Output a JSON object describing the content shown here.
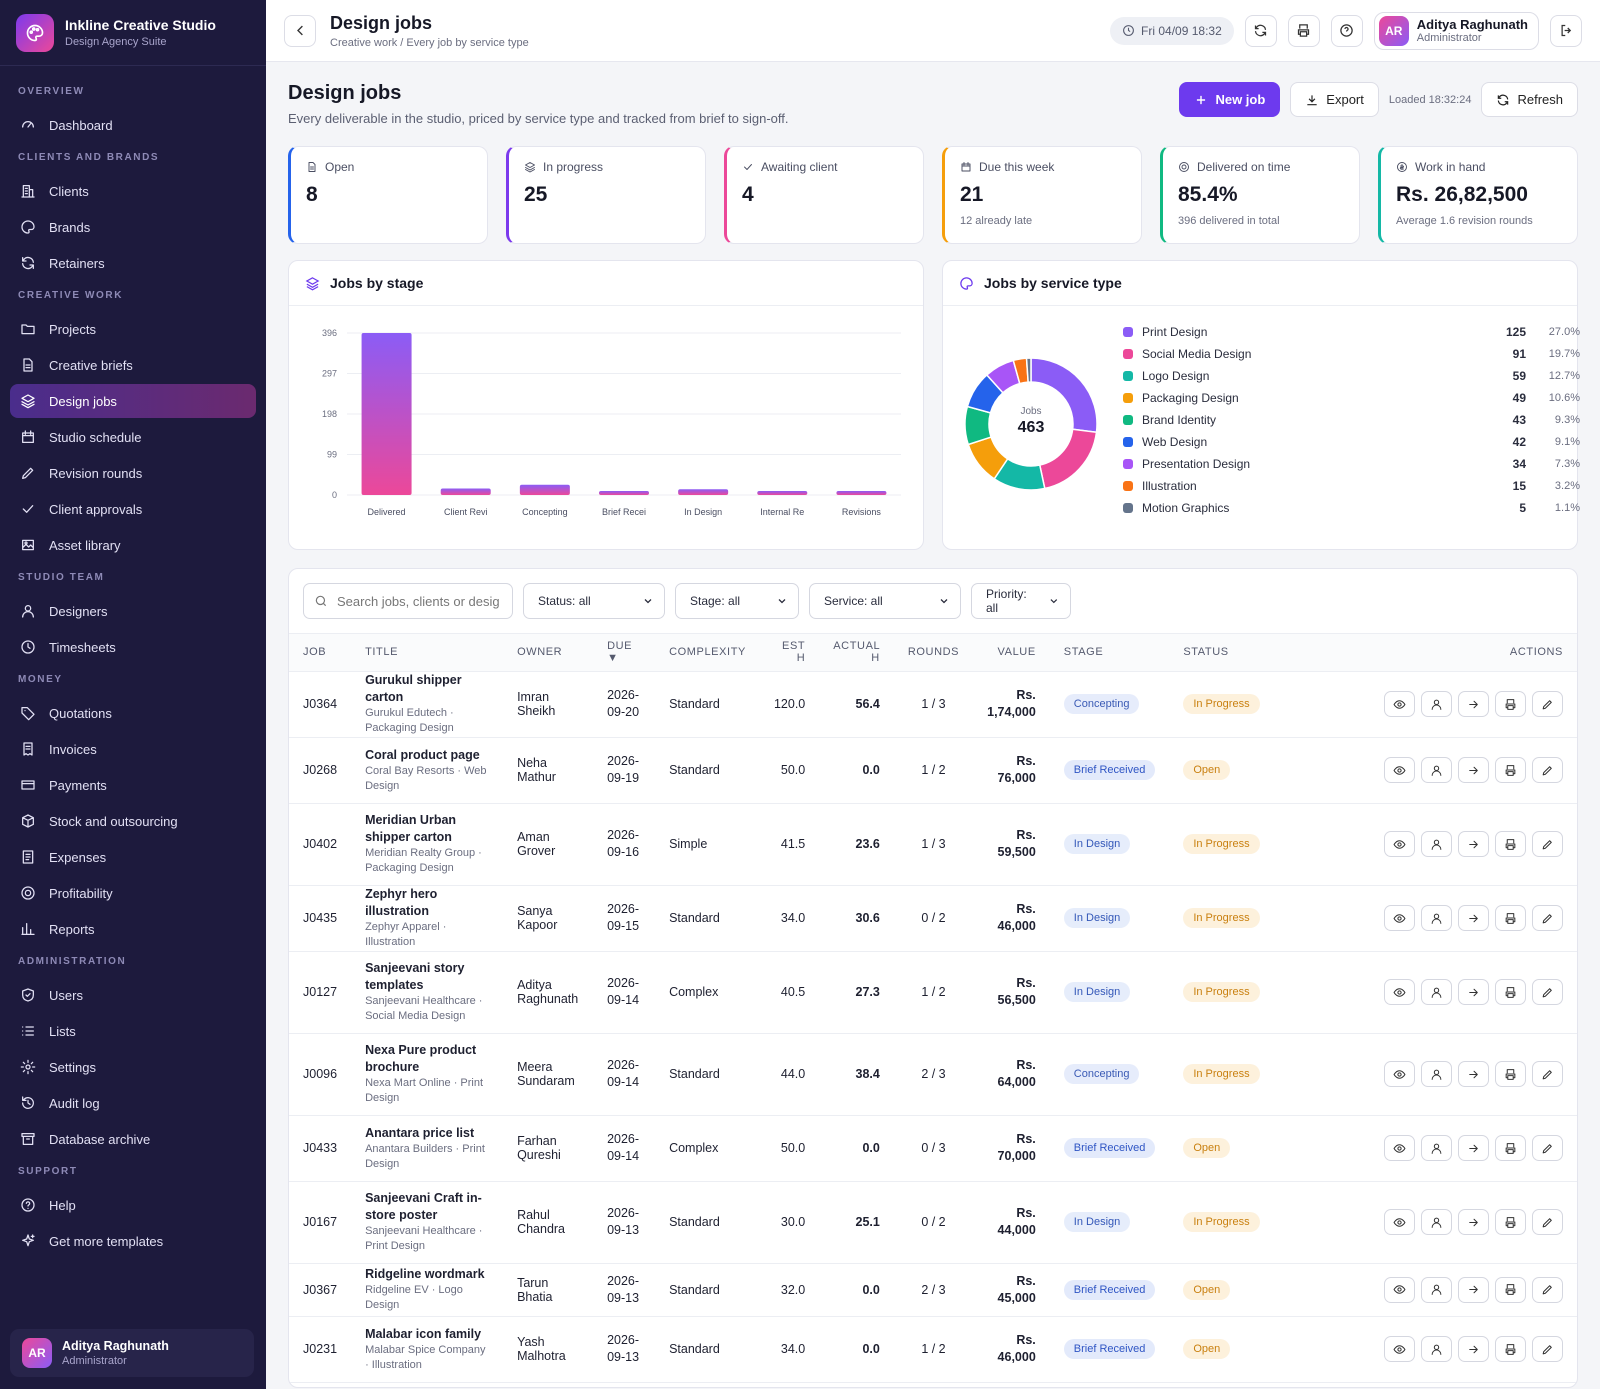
{
  "brand": {
    "name": "Inkline Creative Studio",
    "subtitle": "Design Agency Suite"
  },
  "sidebar": {
    "sections": [
      {
        "title": "OVERVIEW",
        "items": [
          {
            "label": "Dashboard",
            "icon": "dashboard-icon"
          }
        ]
      },
      {
        "title": "CLIENTS AND BRANDS",
        "items": [
          {
            "label": "Clients",
            "icon": "building-icon"
          },
          {
            "label": "Brands",
            "icon": "palette-icon"
          },
          {
            "label": "Retainers",
            "icon": "refresh-icon"
          }
        ]
      },
      {
        "title": "CREATIVE WORK",
        "items": [
          {
            "label": "Projects",
            "icon": "folder-icon"
          },
          {
            "label": "Creative briefs",
            "icon": "file-icon"
          },
          {
            "label": "Design jobs",
            "icon": "layers-icon",
            "active": true
          },
          {
            "label": "Studio schedule",
            "icon": "calendar-icon"
          },
          {
            "label": "Revision rounds",
            "icon": "pen-icon"
          },
          {
            "label": "Client approvals",
            "icon": "check-icon"
          },
          {
            "label": "Asset library",
            "icon": "image-icon"
          }
        ]
      },
      {
        "title": "STUDIO TEAM",
        "items": [
          {
            "label": "Designers",
            "icon": "user-icon"
          },
          {
            "label": "Timesheets",
            "icon": "clock-icon"
          }
        ]
      },
      {
        "title": "MONEY",
        "items": [
          {
            "label": "Quotations",
            "icon": "tag-icon"
          },
          {
            "label": "Invoices",
            "icon": "receipt-icon"
          },
          {
            "label": "Payments",
            "icon": "card-icon"
          },
          {
            "label": "Stock and outsourcing",
            "icon": "box-icon"
          },
          {
            "label": "Expenses",
            "icon": "list-doc-icon"
          },
          {
            "label": "Profitability",
            "icon": "target-icon"
          },
          {
            "label": "Reports",
            "icon": "bar-chart-icon"
          }
        ]
      },
      {
        "title": "ADMINISTRATION",
        "items": [
          {
            "label": "Users",
            "icon": "shield-icon"
          },
          {
            "label": "Lists",
            "icon": "list-icon"
          },
          {
            "label": "Settings",
            "icon": "gear-icon"
          },
          {
            "label": "Audit log",
            "icon": "history-icon"
          },
          {
            "label": "Database archive",
            "icon": "archive-icon"
          }
        ]
      },
      {
        "title": "SUPPORT",
        "items": [
          {
            "label": "Help",
            "icon": "help-icon"
          },
          {
            "label": "Get more templates",
            "icon": "sparkle-icon"
          }
        ]
      }
    ]
  },
  "user": {
    "initials": "AR",
    "name": "Aditya Raghunath",
    "role": "Administrator"
  },
  "topbar": {
    "title": "Design jobs",
    "breadcrumb": "Creative work / Every job by service type",
    "datetime": "Fri 04/09 18:32"
  },
  "page": {
    "title": "Design jobs",
    "subtitle": "Every deliverable in the studio, priced by service type and tracked from brief to sign-off.",
    "new_label": "New job",
    "export_label": "Export",
    "loaded": "Loaded 18:32:24",
    "refresh_label": "Refresh"
  },
  "kpis": [
    {
      "label": "Open",
      "value": "8",
      "sub": "",
      "color": "#2563eb",
      "icon": "file-icon"
    },
    {
      "label": "In progress",
      "value": "25",
      "sub": "",
      "color": "#7c3aed",
      "icon": "layers-icon"
    },
    {
      "label": "Awaiting client",
      "value": "4",
      "sub": "",
      "color": "#ec4899",
      "icon": "check-icon"
    },
    {
      "label": "Due this week",
      "value": "21",
      "sub": "12 already late",
      "color": "#f59e0b",
      "icon": "calendar-icon"
    },
    {
      "label": "Delivered on time",
      "value": "85.4%",
      "sub": "396 delivered in total",
      "color": "#10b981",
      "icon": "target-icon"
    },
    {
      "label": "Work in hand",
      "value": "Rs. 26,82,500",
      "sub": "Average 1.6 revision rounds",
      "color": "#14b8a6",
      "icon": "coin-icon"
    }
  ],
  "stage_panel": {
    "title": "Jobs by stage"
  },
  "service_panel": {
    "title": "Jobs by service type",
    "center_label": "Jobs",
    "center_value": "463"
  },
  "chart_data": [
    {
      "type": "bar",
      "title": "Jobs by stage",
      "categories": [
        "Delivered",
        "Client Revi",
        "Concepting",
        "Brief Recei",
        "In Design",
        "Internal Re",
        "Revisions"
      ],
      "values": [
        396,
        16,
        25,
        8,
        14,
        3,
        1
      ],
      "yticks": [
        0,
        99,
        198,
        297,
        396
      ],
      "ylim": [
        0,
        396
      ],
      "grid": true
    },
    {
      "type": "pie",
      "title": "Jobs by service type",
      "total": 463,
      "slices": [
        {
          "name": "Print Design",
          "value": 125,
          "pct": "27.0%",
          "color": "#8b5cf6"
        },
        {
          "name": "Social Media Design",
          "value": 91,
          "pct": "19.7%",
          "color": "#ec4899"
        },
        {
          "name": "Logo Design",
          "value": 59,
          "pct": "12.7%",
          "color": "#14b8a6"
        },
        {
          "name": "Packaging Design",
          "value": 49,
          "pct": "10.6%",
          "color": "#f59e0b"
        },
        {
          "name": "Brand Identity",
          "value": 43,
          "pct": "9.3%",
          "color": "#10b981"
        },
        {
          "name": "Web Design",
          "value": 42,
          "pct": "9.1%",
          "color": "#2563eb"
        },
        {
          "name": "Presentation Design",
          "value": 34,
          "pct": "7.3%",
          "color": "#a855f7"
        },
        {
          "name": "Illustration",
          "value": 15,
          "pct": "3.2%",
          "color": "#f97316"
        },
        {
          "name": "Motion Graphics",
          "value": 5,
          "pct": "1.1%",
          "color": "#64748b"
        }
      ]
    }
  ],
  "filters": {
    "search_placeholder": "Search jobs, clients or desig",
    "status": "Status: all",
    "stage": "Stage: all",
    "service": "Service: all",
    "priority": "Priority: all"
  },
  "table": {
    "columns": [
      "JOB",
      "TITLE",
      "OWNER",
      "DUE ▼",
      "COMPLEXITY",
      "EST H",
      "ACTUAL H",
      "ROUNDS",
      "VALUE",
      "STAGE",
      "STATUS",
      "ACTIONS"
    ],
    "rows": [
      {
        "job": "J0364",
        "title": "Gurukul shipper carton",
        "sub": "Gurukul Edutech · Packaging Design",
        "owner": "Imran Sheikh",
        "due": "2026-09-20",
        "complexity": "Standard",
        "est": "120.0",
        "actual": "56.4",
        "rounds": "1 / 3",
        "value": "Rs. 1,74,000",
        "stage": "Concepting",
        "status": "In Progress"
      },
      {
        "job": "J0268",
        "title": "Coral product page",
        "sub": "Coral Bay Resorts · Web Design",
        "owner": "Neha Mathur",
        "due": "2026-09-19",
        "complexity": "Standard",
        "est": "50.0",
        "actual": "0.0",
        "rounds": "1 / 2",
        "value": "Rs. 76,000",
        "stage": "Brief Received",
        "status": "Open"
      },
      {
        "job": "J0402",
        "title": "Meridian Urban shipper carton",
        "sub": "Meridian Realty Group · Packaging Design",
        "owner": "Aman Grover",
        "due": "2026-09-16",
        "complexity": "Simple",
        "est": "41.5",
        "actual": "23.6",
        "rounds": "1 / 3",
        "value": "Rs. 59,500",
        "stage": "In Design",
        "status": "In Progress"
      },
      {
        "job": "J0435",
        "title": "Zephyr hero illustration",
        "sub": "Zephyr Apparel · Illustration",
        "owner": "Sanya Kapoor",
        "due": "2026-09-15",
        "complexity": "Standard",
        "est": "34.0",
        "actual": "30.6",
        "rounds": "0 / 2",
        "value": "Rs. 46,000",
        "stage": "In Design",
        "status": "In Progress"
      },
      {
        "job": "J0127",
        "title": "Sanjeevani story templates",
        "sub": "Sanjeevani Healthcare · Social Media Design",
        "owner": "Aditya Raghunath",
        "due": "2026-09-14",
        "complexity": "Complex",
        "est": "40.5",
        "actual": "27.3",
        "rounds": "1 / 2",
        "value": "Rs. 56,500",
        "stage": "In Design",
        "status": "In Progress"
      },
      {
        "job": "J0096",
        "title": "Nexa Pure product brochure",
        "sub": "Nexa Mart Online · Print Design",
        "owner": "Meera Sundaram",
        "due": "2026-09-14",
        "complexity": "Standard",
        "est": "44.0",
        "actual": "38.4",
        "rounds": "2 / 3",
        "value": "Rs. 64,000",
        "stage": "Concepting",
        "status": "In Progress"
      },
      {
        "job": "J0433",
        "title": "Anantara price list",
        "sub": "Anantara Builders · Print Design",
        "owner": "Farhan Qureshi",
        "due": "2026-09-14",
        "complexity": "Complex",
        "est": "50.0",
        "actual": "0.0",
        "rounds": "0 / 3",
        "value": "Rs. 70,000",
        "stage": "Brief Received",
        "status": "Open"
      },
      {
        "job": "J0167",
        "title": "Sanjeevani Craft in-store poster",
        "sub": "Sanjeevani Healthcare · Print Design",
        "owner": "Rahul Chandra",
        "due": "2026-09-13",
        "complexity": "Standard",
        "est": "30.0",
        "actual": "25.1",
        "rounds": "0 / 2",
        "value": "Rs. 44,000",
        "stage": "In Design",
        "status": "In Progress"
      },
      {
        "job": "J0367",
        "title": "Ridgeline wordmark",
        "sub": "Ridgeline EV · Logo Design",
        "owner": "Tarun Bhatia",
        "due": "2026-09-13",
        "complexity": "Standard",
        "est": "32.0",
        "actual": "0.0",
        "rounds": "2 / 3",
        "value": "Rs. 45,000",
        "stage": "Brief Received",
        "status": "Open"
      },
      {
        "job": "J0231",
        "title": "Malabar icon family",
        "sub": "Malabar Spice Company · Illustration",
        "owner": "Yash Malhotra",
        "due": "2026-09-13",
        "complexity": "Standard",
        "est": "34.0",
        "actual": "0.0",
        "rounds": "1 / 2",
        "value": "Rs. 46,000",
        "stage": "Brief Received",
        "status": "Open"
      }
    ]
  }
}
